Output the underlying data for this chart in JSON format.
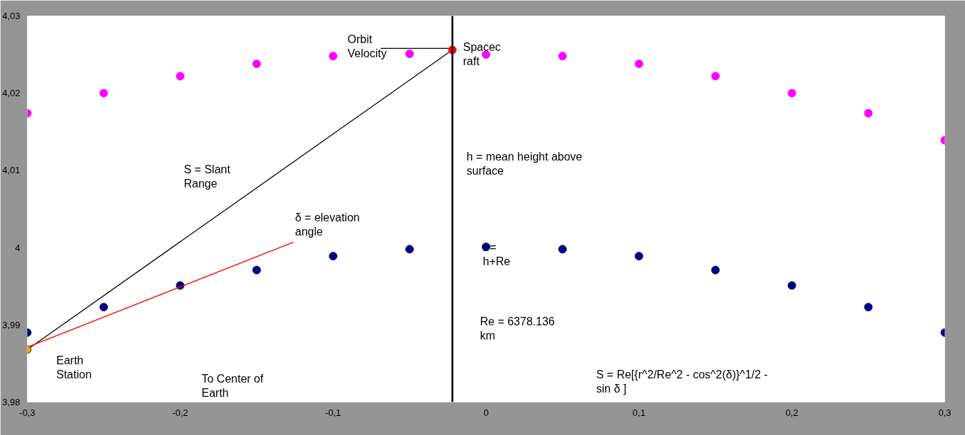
{
  "chart_data": {
    "type": "scatter",
    "marker": "circle",
    "xlim": [
      -0.3,
      0.3
    ],
    "ylim": [
      3.98,
      4.03
    ],
    "xticks": [
      {
        "value": -0.3,
        "label": "-0,3"
      },
      {
        "value": -0.2,
        "label": "-0,2"
      },
      {
        "value": -0.1,
        "label": "-0,1"
      },
      0,
      {
        "value": 0.1,
        "label": "0,1"
      },
      {
        "value": 0.2,
        "label": "0,2"
      },
      {
        "value": 0.3,
        "label": "0,3"
      }
    ],
    "yticks": [
      {
        "value": 3.98,
        "label": "3,98"
      },
      {
        "value": 3.99,
        "label": "3,99"
      },
      4,
      {
        "value": 4.01,
        "label": "4,01"
      },
      {
        "value": 4.02,
        "label": "4,02"
      },
      {
        "value": 4.03,
        "label": "4,03"
      }
    ],
    "x": [
      -0.3,
      -0.25,
      -0.2,
      -0.15,
      -0.1,
      -0.05,
      0,
      0.05,
      0.1,
      0.15,
      0.2,
      0.25,
      0.3
    ],
    "series": [
      {
        "color": "#ff00ff",
        "values": [
          4.0174,
          4.02,
          4.0222,
          4.0238,
          4.0248,
          4.0251,
          4.025,
          4.0248,
          4.0238,
          4.0222,
          4.02,
          4.0174,
          4.0139
        ]
      },
      {
        "color": "#000080",
        "values": [
          3.989,
          3.9923,
          3.9951,
          3.9971,
          3.9989,
          3.9998,
          4.0001,
          3.9998,
          3.9989,
          3.9971,
          3.9951,
          3.9923,
          3.989
        ]
      },
      {
        "type": "line",
        "marker": "none",
        "color": "#000000",
        "x": [
          -0.3,
          -0.022
        ],
        "values": [
          3.9868,
          4.0256
        ]
      },
      {
        "type": "line",
        "marker": "none",
        "color": "#ff0000",
        "x": [
          -0.3,
          -0.126
        ],
        "values": [
          3.9871,
          4.0007
        ]
      },
      {
        "type": "line",
        "marker": "none",
        "color": "#000000",
        "x": [
          -0.022,
          -0.069
        ],
        "values": [
          4.0258,
          4.0258
        ]
      },
      {
        "color": "#ff0000",
        "x": [
          -0.022
        ],
        "values": [
          4.0256
        ]
      },
      {
        "color": "#ff9900",
        "x": [
          -0.3
        ],
        "values": [
          3.9868
        ]
      }
    ],
    "ref_lines": [
      {
        "axis": "x",
        "value": -0.022,
        "label": null,
        "color": "#000000"
      }
    ],
    "annotations": [
      "Orbit\nVelocity",
      "Spacec\nraft",
      "h = mean height above\nsurface",
      "S = Slant\nRange",
      "δ  = elevation\nangle",
      "r =\nh+Re",
      "Re = 6378.136\nkm",
      "Earth\nStation",
      "S = Re[{r^2/Re^2 - cos^2(δ)}^1/2 -\nsin δ ]",
      "To Center of\nEarth"
    ]
  }
}
